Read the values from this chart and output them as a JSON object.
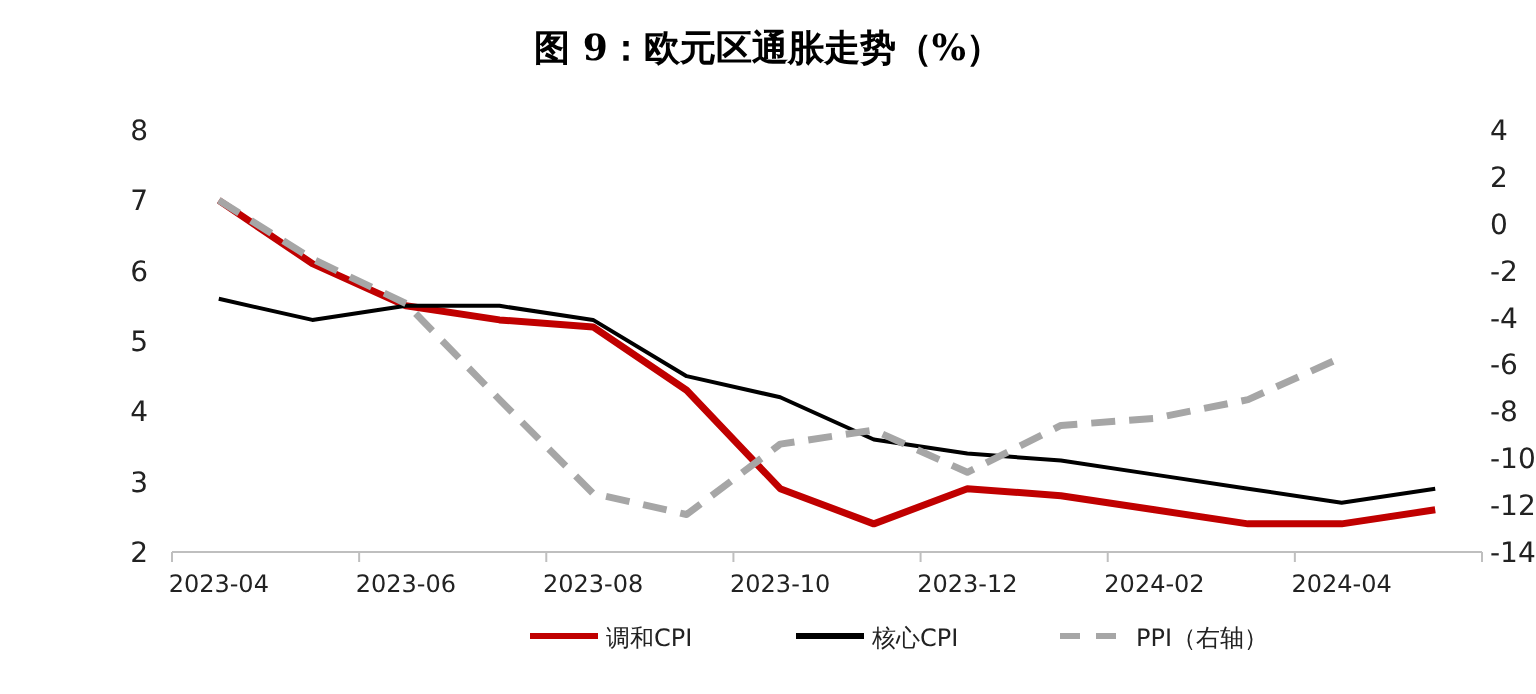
{
  "chart_data": {
    "type": "line",
    "title": "图 9：欧元区通胀走势（%）",
    "categories": [
      "2023-04",
      null,
      "2023-06",
      null,
      "2023-08",
      null,
      "2023-10",
      null,
      "2023-12",
      null,
      "2024-02",
      null,
      "2024-04",
      null
    ],
    "series": [
      {
        "name": "调和CPI",
        "color": "#c00000",
        "values": [
          7.0,
          6.1,
          5.5,
          5.3,
          5.2,
          4.3,
          2.9,
          2.4,
          2.9,
          2.8,
          2.6,
          2.4,
          2.4,
          2.6
        ]
      },
      {
        "name": "核心CPI",
        "color": "#000000",
        "values": [
          5.6,
          5.3,
          5.5,
          5.5,
          5.3,
          4.5,
          4.2,
          3.6,
          3.4,
          3.3,
          3.1,
          2.9,
          2.7,
          2.9
        ]
      },
      {
        "name": "PPI（右轴）",
        "color": "#a6a6a6",
        "line_style": "dashed",
        "axis": "y2",
        "values": [
          1.0,
          -1.5,
          -3.4,
          -7.5,
          -11.5,
          -12.4,
          -9.4,
          -8.8,
          -10.6,
          -8.6,
          -8.3,
          -7.5,
          -5.7,
          null
        ]
      }
    ],
    "ylim": [
      2,
      8
    ],
    "yticks": [
      2,
      3,
      4,
      5,
      6,
      7,
      8
    ],
    "y2lim": [
      -14,
      4
    ],
    "y2ticks": [
      -14,
      -12,
      -10,
      -8,
      -6,
      -4,
      -2,
      0,
      2,
      4
    ],
    "legend": "bottom"
  }
}
